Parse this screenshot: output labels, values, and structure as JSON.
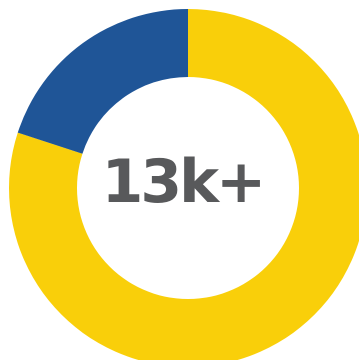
{
  "chart_data": {
    "type": "pie",
    "variant": "donut",
    "center_label": "13k+",
    "slices": [
      {
        "value": 80,
        "color": "#f9cf0a"
      },
      {
        "value": 20,
        "color": "#1f5597"
      }
    ],
    "legend": "none"
  },
  "colors": {
    "primary": "#f9cf0a",
    "secondary": "#1f5597",
    "text": "#58595b"
  }
}
